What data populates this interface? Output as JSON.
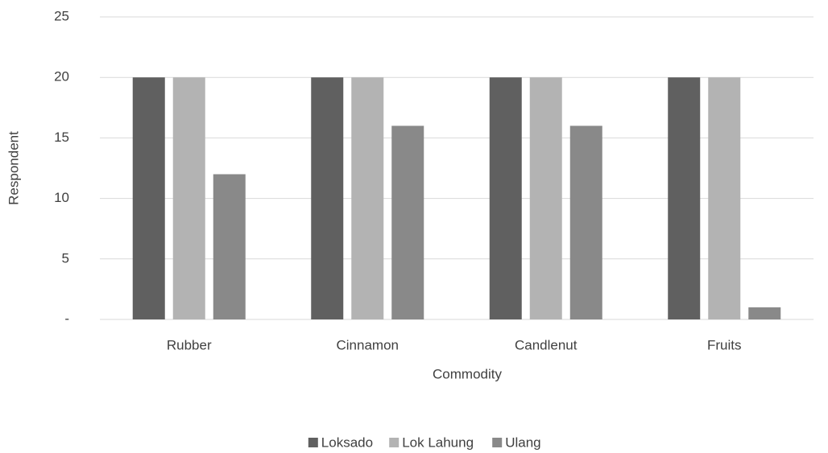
{
  "chart_data": {
    "type": "bar",
    "x_label": "Commodity",
    "y_label": "Respondent",
    "categories": [
      "Rubber",
      "Cinnamon",
      "Candlenut",
      "Fruits"
    ],
    "series": [
      {
        "name": "Loksado",
        "color": "#606060",
        "values": [
          20,
          20,
          20,
          20
        ]
      },
      {
        "name": "Lok Lahung",
        "color": "#b3b3b3",
        "values": [
          20,
          20,
          20,
          20
        ]
      },
      {
        "name": "Ulang",
        "color": "#898989",
        "values": [
          12,
          16,
          16,
          1
        ]
      }
    ],
    "ylim": [
      0,
      25
    ],
    "yticks": [
      {
        "value": 0,
        "label": "-"
      },
      5,
      10,
      15,
      20,
      25
    ],
    "grid": true,
    "legend": "bottom"
  }
}
